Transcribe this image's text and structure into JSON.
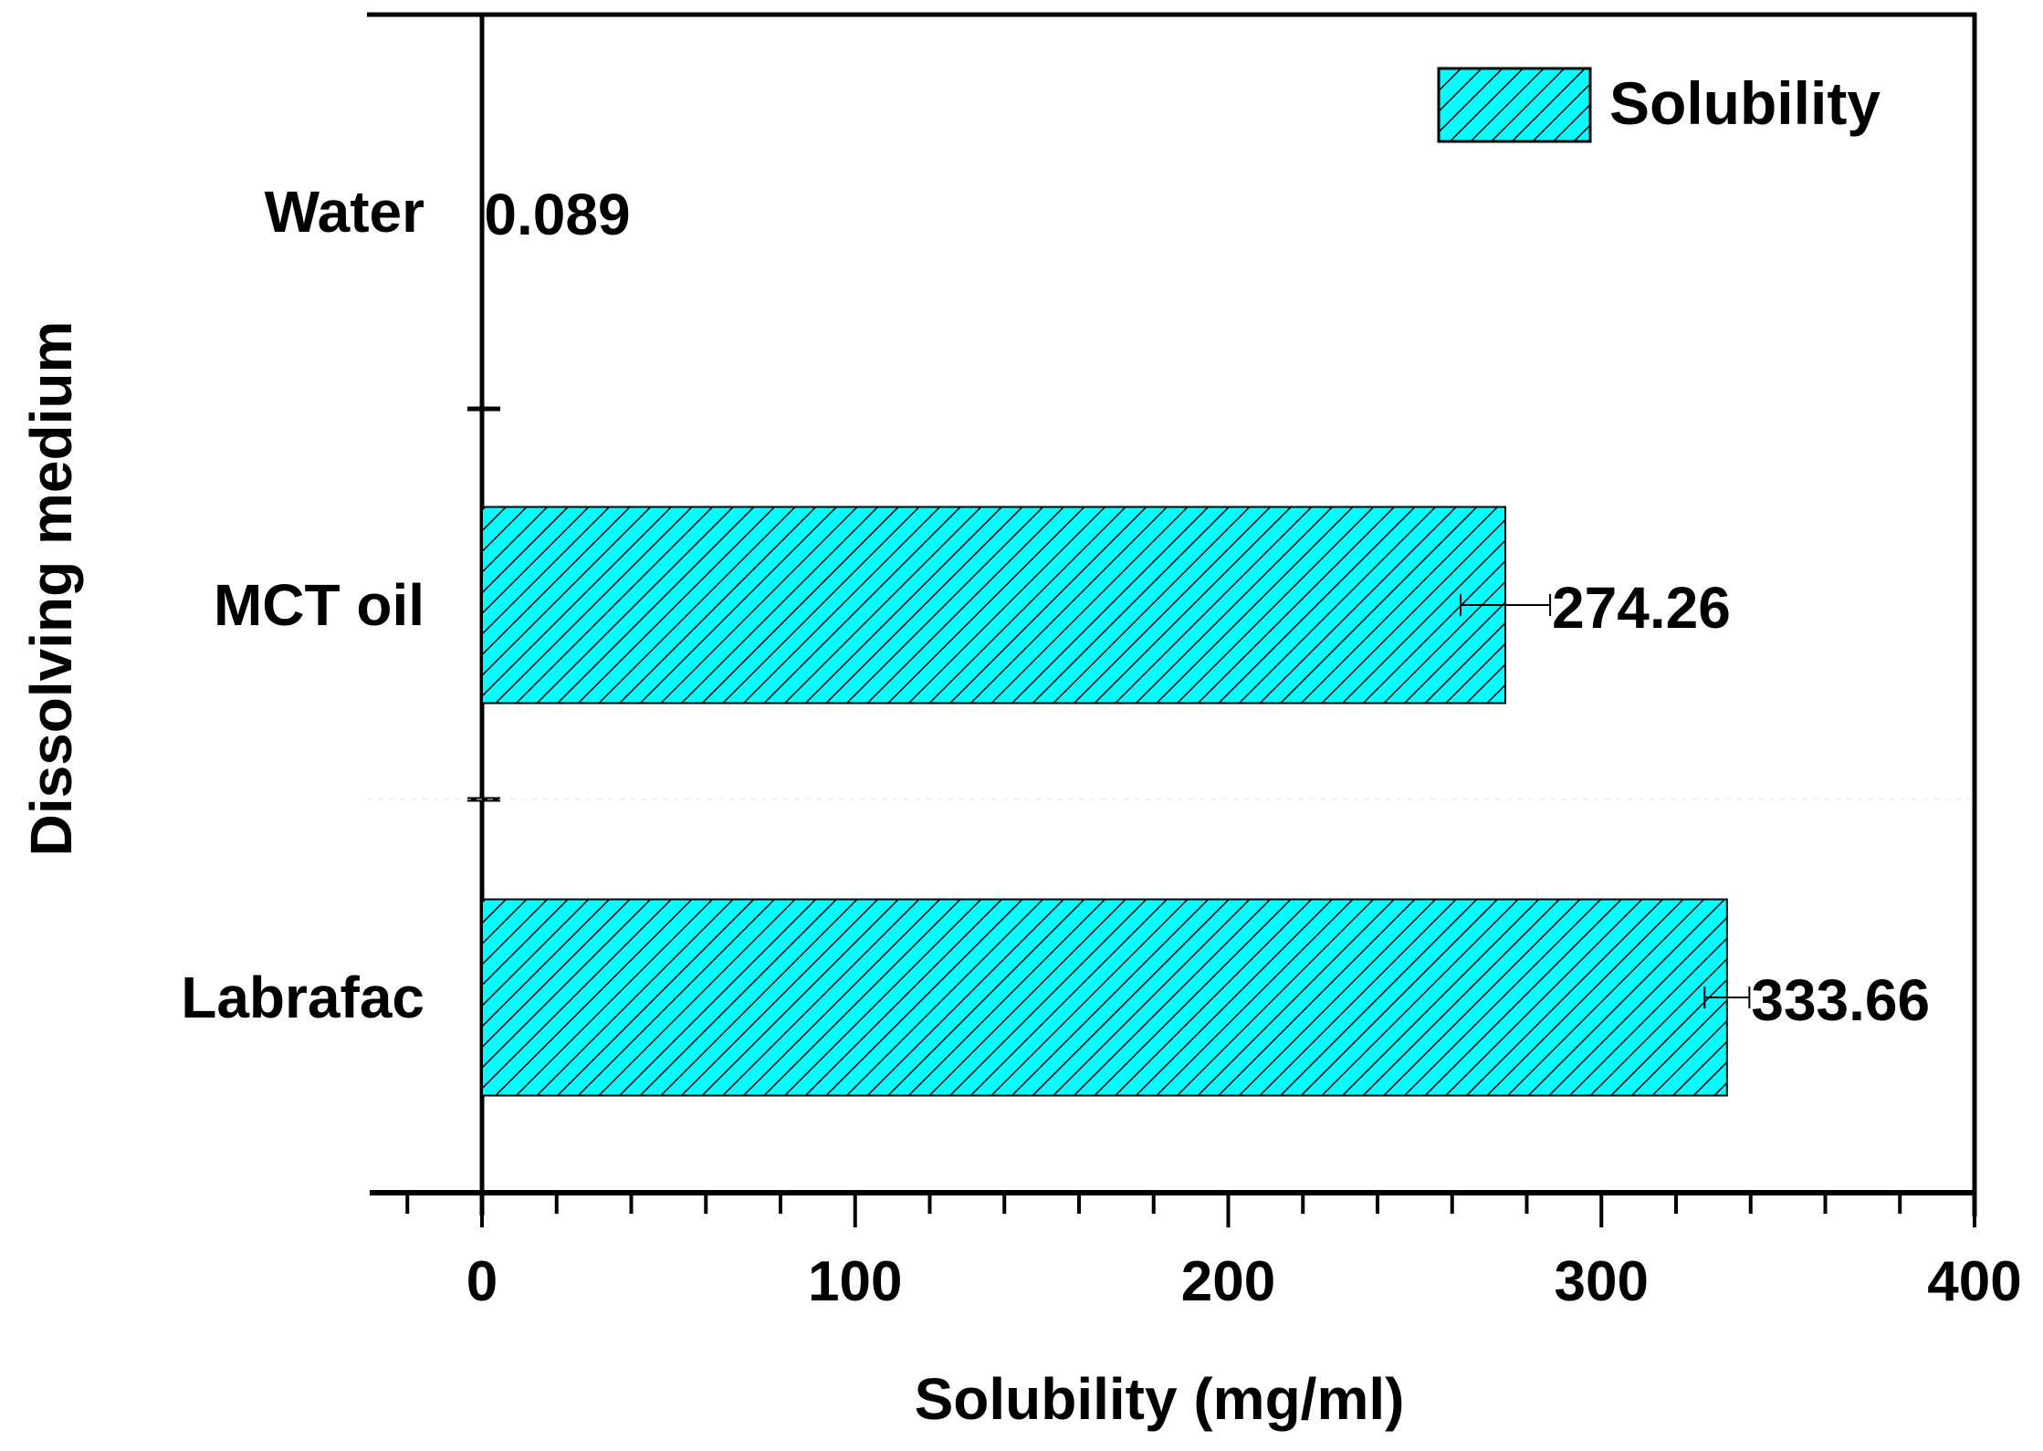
{
  "chart_data": {
    "type": "bar",
    "orientation": "horizontal",
    "title": "",
    "xlabel": "Solubility (mg/ml)",
    "ylabel": "Dissolving medium",
    "categories": [
      "Water",
      "MCT oil",
      "Labrafac"
    ],
    "series": [
      {
        "name": "Solubility",
        "values": [
          0.089,
          274.26,
          333.66
        ],
        "error": [
          0.01,
          12,
          6
        ],
        "value_labels": [
          "0.089",
          "274.26",
          "333.66"
        ],
        "color": "#00ffff",
        "hatch": "diagonal-lines"
      }
    ],
    "xlim": [
      -30,
      400
    ],
    "xticks": [
      0,
      100,
      200,
      300,
      400
    ],
    "xtick_labels": [
      "0",
      "100",
      "200",
      "300",
      "400"
    ],
    "minor_tick_step": 20,
    "grid": false,
    "legend": {
      "position": "upper right",
      "entries": [
        "Solubility"
      ]
    }
  },
  "colors": {
    "bar_fill": "#00ffff",
    "hatch": "#000000",
    "axis": "#000000"
  }
}
